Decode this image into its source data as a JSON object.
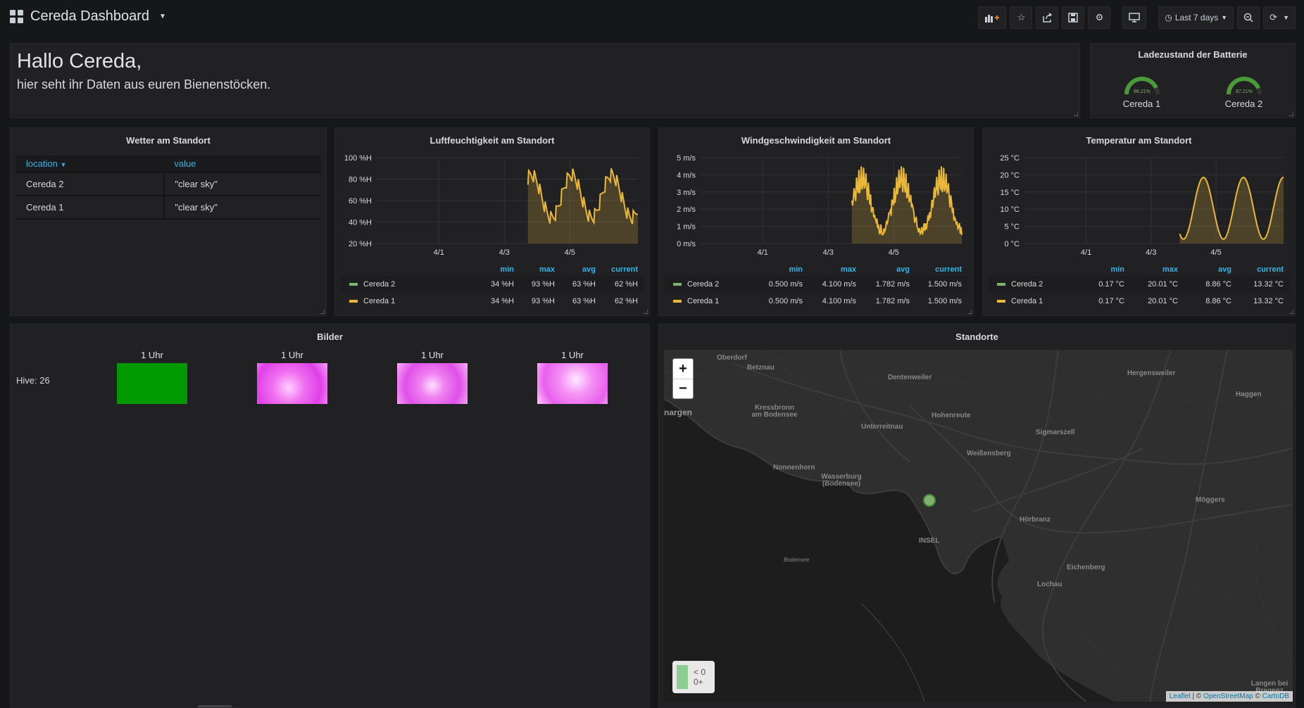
{
  "header": {
    "title": "Cereda Dashboard",
    "time_range": "Last 7 days"
  },
  "welcome": {
    "heading": "Hallo Cereda,",
    "text": "hier seht ihr Daten aus euren Bienenstöcken."
  },
  "battery": {
    "title": "Ladezustand der Batterie",
    "gauges": [
      {
        "name": "Cereda 1",
        "value": "86.21%",
        "percent": 86.21
      },
      {
        "name": "Cereda 2",
        "value": "87.21%",
        "percent": 87.21
      }
    ]
  },
  "weather": {
    "title": "Wetter am Standort",
    "columns": [
      "location",
      "value"
    ],
    "rows": [
      {
        "location": "Cereda 2",
        "value": "\"clear sky\""
      },
      {
        "location": "Cereda 1",
        "value": "\"clear sky\""
      }
    ]
  },
  "charts": [
    {
      "title": "Luftfeuchtigkeit am Standort",
      "y_ticks": [
        "100 %H",
        "80 %H",
        "60 %H",
        "40 %H",
        "20 %H"
      ],
      "x_ticks": [
        "4/1",
        "4/3",
        "4/5"
      ],
      "legend_headers": [
        "min",
        "max",
        "avg",
        "current"
      ],
      "series": [
        {
          "name": "Cereda 2",
          "min": "34 %H",
          "max": "93 %H",
          "avg": "63 %H",
          "current": "62 %H"
        },
        {
          "name": "Cereda 1",
          "min": "34 %H",
          "max": "93 %H",
          "avg": "63 %H",
          "current": "62 %H"
        }
      ]
    },
    {
      "title": "Windgeschwindigkeit am Standort",
      "y_ticks": [
        "5 m/s",
        "4 m/s",
        "3 m/s",
        "2 m/s",
        "1 m/s",
        "0 m/s"
      ],
      "x_ticks": [
        "4/1",
        "4/3",
        "4/5"
      ],
      "legend_headers": [
        "min",
        "max",
        "avg",
        "current"
      ],
      "series": [
        {
          "name": "Cereda 2",
          "min": "0.500 m/s",
          "max": "4.100 m/s",
          "avg": "1.782 m/s",
          "current": "1.500 m/s"
        },
        {
          "name": "Cereda 1",
          "min": "0.500 m/s",
          "max": "4.100 m/s",
          "avg": "1.782 m/s",
          "current": "1.500 m/s"
        }
      ]
    },
    {
      "title": "Temperatur am Standort",
      "y_ticks": [
        "25 °C",
        "20 °C",
        "15 °C",
        "10 °C",
        "5 °C",
        "0 °C"
      ],
      "x_ticks": [
        "4/1",
        "4/3",
        "4/5"
      ],
      "legend_headers": [
        "min",
        "max",
        "avg",
        "current"
      ],
      "series": [
        {
          "name": "Cereda 2",
          "min": "0.17 °C",
          "max": "20.01 °C",
          "avg": "8.86 °C",
          "current": "13.32 °C"
        },
        {
          "name": "Cereda 1",
          "min": "0.17 °C",
          "max": "20.01 °C",
          "avg": "8.86 °C",
          "current": "13.32 °C"
        }
      ]
    }
  ],
  "images": {
    "title": "Bilder",
    "hive_label": "Hive: 26",
    "items": [
      {
        "caption": "1 Uhr"
      },
      {
        "caption": "1 Uhr"
      },
      {
        "caption": "1 Uhr"
      },
      {
        "caption": "1 Uhr"
      }
    ]
  },
  "map": {
    "title": "Standorte",
    "legend": [
      "< 0",
      "0+"
    ],
    "attribution_leaflet": "Leaflet",
    "attribution_osm": "OpenStreetMap",
    "attribution_carto": "CartoDB",
    "places": [
      "Oberdorf",
      "Betznau",
      "Dentenweiler",
      "Hergensweiler",
      "Haggen",
      "Kressbronn am Bodensee",
      "Hohenreute",
      "Unterreitnau",
      "Sigmarszell",
      "Weißensberg",
      "Nonnenhorn",
      "Wasserburg (Bodensee)",
      "Hörbranz",
      "Möggers",
      "INSEL",
      "Bodensee",
      "Eichenberg",
      "Lochau",
      "Langen bei Bregenz",
      "nargen"
    ],
    "zoom_in": "+",
    "zoom_out": "−"
  },
  "colors": {
    "series_green": "#7eb26d",
    "series_yellow": "#eab839",
    "accent_blue": "#33b5e5"
  }
}
